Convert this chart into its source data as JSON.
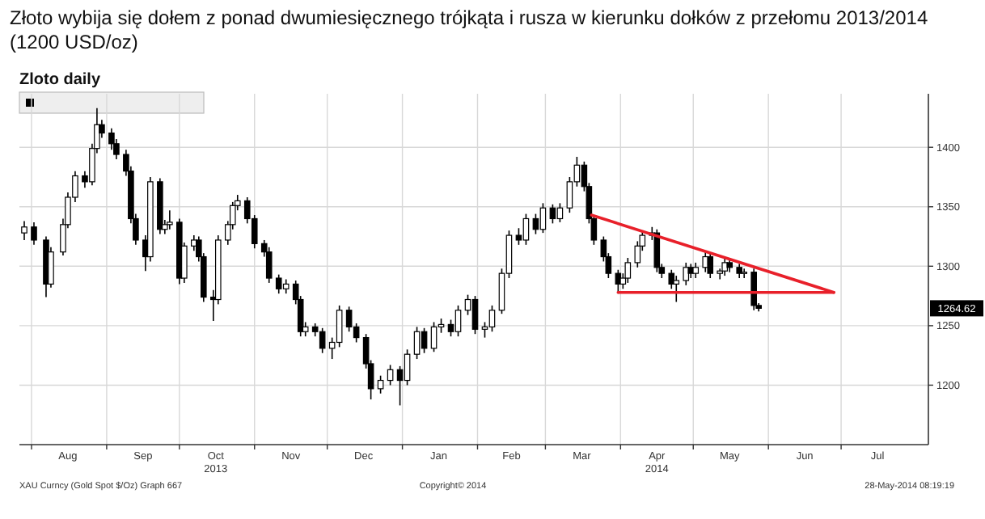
{
  "chart_data": {
    "type": "candlestick",
    "title": "Złoto wybija się dołem z ponad dwumiesięcznego trójkąta i rusza w kierunku dołków z przełomu 2013/2014 (1200 USD/oz)",
    "subtitle": "Zloto daily",
    "x": [
      "2013-07-29",
      "2013-08-02",
      "2013-08-07",
      "2013-08-09",
      "2013-08-14",
      "2013-08-16",
      "2013-08-19",
      "2013-08-23",
      "2013-08-26",
      "2013-08-28",
      "2013-08-30",
      "2013-09-03",
      "2013-09-05",
      "2013-09-09",
      "2013-09-11",
      "2013-09-13",
      "2013-09-17",
      "2013-09-19",
      "2013-09-23",
      "2013-09-25",
      "2013-09-27",
      "2013-10-01",
      "2013-10-03",
      "2013-10-07",
      "2013-10-09",
      "2013-10-11",
      "2013-10-15",
      "2013-10-17",
      "2013-10-21",
      "2013-10-23",
      "2013-10-25",
      "2013-10-29",
      "2013-11-01",
      "2013-11-05",
      "2013-11-07",
      "2013-11-11",
      "2013-11-14",
      "2013-11-18",
      "2013-11-20",
      "2013-11-22",
      "2013-11-26",
      "2013-11-29",
      "2013-12-03",
      "2013-12-06",
      "2013-12-10",
      "2013-12-13",
      "2013-12-17",
      "2013-12-19",
      "2013-12-23",
      "2013-12-27",
      "2013-12-31",
      "2014-01-03",
      "2014-01-07",
      "2014-01-10",
      "2014-01-14",
      "2014-01-17",
      "2014-01-21",
      "2014-01-24",
      "2014-01-28",
      "2014-01-31",
      "2014-02-04",
      "2014-02-07",
      "2014-02-11",
      "2014-02-14",
      "2014-02-18",
      "2014-02-21",
      "2014-02-25",
      "2014-02-28",
      "2014-03-04",
      "2014-03-07",
      "2014-03-11",
      "2014-03-14",
      "2014-03-17",
      "2014-03-19",
      "2014-03-21",
      "2014-03-25",
      "2014-03-27",
      "2014-03-31",
      "2014-04-02",
      "2014-04-04",
      "2014-04-08",
      "2014-04-10",
      "2014-04-14",
      "2014-04-16",
      "2014-04-18",
      "2014-04-22",
      "2014-04-24",
      "2014-04-28",
      "2014-04-30",
      "2014-05-02",
      "2014-05-06",
      "2014-05-08",
      "2014-05-12",
      "2014-05-14",
      "2014-05-16",
      "2014-05-20",
      "2014-05-22",
      "2014-05-26",
      "2014-05-28"
    ],
    "series": [
      {
        "color": "#000000",
        "ohlc": [
          [
            1328,
            1338,
            1322,
            1333
          ],
          [
            1333,
            1337,
            1318,
            1322
          ],
          [
            1322,
            1325,
            1274,
            1285
          ],
          [
            1285,
            1316,
            1282,
            1312
          ],
          [
            1312,
            1340,
            1309,
            1335
          ],
          [
            1335,
            1362,
            1332,
            1358
          ],
          [
            1358,
            1380,
            1354,
            1376
          ],
          [
            1376,
            1380,
            1366,
            1371
          ],
          [
            1371,
            1403,
            1368,
            1399
          ],
          [
            1399,
            1433,
            1395,
            1419
          ],
          [
            1419,
            1423,
            1408,
            1412
          ],
          [
            1412,
            1416,
            1398,
            1403
          ],
          [
            1403,
            1407,
            1390,
            1394
          ],
          [
            1394,
            1398,
            1376,
            1380
          ],
          [
            1380,
            1384,
            1336,
            1340
          ],
          [
            1340,
            1344,
            1318,
            1322
          ],
          [
            1322,
            1326,
            1296,
            1308
          ],
          [
            1308,
            1375,
            1304,
            1371
          ],
          [
            1371,
            1374,
            1327,
            1331
          ],
          [
            1331,
            1339,
            1327,
            1335
          ],
          [
            1335,
            1347,
            1331,
            1337
          ],
          [
            1337,
            1340,
            1285,
            1290
          ],
          [
            1290,
            1320,
            1286,
            1317
          ],
          [
            1317,
            1326,
            1313,
            1322
          ],
          [
            1322,
            1325,
            1304,
            1308
          ],
          [
            1308,
            1311,
            1270,
            1274
          ],
          [
            1274,
            1280,
            1254,
            1272
          ],
          [
            1272,
            1326,
            1268,
            1322
          ],
          [
            1322,
            1338,
            1318,
            1335
          ],
          [
            1335,
            1354,
            1331,
            1351
          ],
          [
            1351,
            1360,
            1347,
            1355
          ],
          [
            1355,
            1358,
            1336,
            1340
          ],
          [
            1340,
            1343,
            1315,
            1319
          ],
          [
            1319,
            1322,
            1308,
            1312
          ],
          [
            1312,
            1316,
            1286,
            1290
          ],
          [
            1290,
            1293,
            1277,
            1281
          ],
          [
            1281,
            1289,
            1277,
            1285
          ],
          [
            1285,
            1288,
            1268,
            1272
          ],
          [
            1272,
            1275,
            1241,
            1245
          ],
          [
            1245,
            1253,
            1241,
            1249
          ],
          [
            1249,
            1252,
            1241,
            1245
          ],
          [
            1245,
            1248,
            1227,
            1231
          ],
          [
            1231,
            1240,
            1222,
            1236
          ],
          [
            1236,
            1267,
            1232,
            1263
          ],
          [
            1263,
            1266,
            1245,
            1249
          ],
          [
            1249,
            1252,
            1236,
            1240
          ],
          [
            1240,
            1243,
            1214,
            1218
          ],
          [
            1218,
            1221,
            1188,
            1197
          ],
          [
            1197,
            1208,
            1193,
            1204
          ],
          [
            1204,
            1217,
            1200,
            1213
          ],
          [
            1213,
            1216,
            1183,
            1204
          ],
          [
            1204,
            1230,
            1200,
            1226
          ],
          [
            1226,
            1249,
            1222,
            1245
          ],
          [
            1245,
            1248,
            1227,
            1231
          ],
          [
            1231,
            1253,
            1228,
            1249
          ],
          [
            1249,
            1256,
            1244,
            1251
          ],
          [
            1251,
            1255,
            1241,
            1245
          ],
          [
            1245,
            1267,
            1241,
            1263
          ],
          [
            1263,
            1276,
            1259,
            1272
          ],
          [
            1272,
            1275,
            1243,
            1247
          ],
          [
            1247,
            1253,
            1240,
            1249
          ],
          [
            1249,
            1267,
            1245,
            1263
          ],
          [
            1263,
            1298,
            1260,
            1294
          ],
          [
            1294,
            1330,
            1290,
            1326
          ],
          [
            1326,
            1332,
            1318,
            1322
          ],
          [
            1322,
            1344,
            1318,
            1340
          ],
          [
            1340,
            1344,
            1327,
            1331
          ],
          [
            1331,
            1353,
            1328,
            1349
          ],
          [
            1349,
            1352,
            1336,
            1340
          ],
          [
            1340,
            1353,
            1337,
            1349
          ],
          [
            1349,
            1375,
            1345,
            1371
          ],
          [
            1371,
            1392,
            1367,
            1385
          ],
          [
            1385,
            1388,
            1363,
            1367
          ],
          [
            1367,
            1370,
            1336,
            1340
          ],
          [
            1340,
            1343,
            1318,
            1322
          ],
          [
            1322,
            1325,
            1304,
            1308
          ],
          [
            1308,
            1311,
            1290,
            1294
          ],
          [
            1294,
            1297,
            1277,
            1285
          ],
          [
            1285,
            1294,
            1281,
            1290
          ],
          [
            1290,
            1307,
            1286,
            1303
          ],
          [
            1303,
            1321,
            1299,
            1317
          ],
          [
            1317,
            1330,
            1313,
            1326
          ],
          [
            1326,
            1333,
            1322,
            1328
          ],
          [
            1328,
            1331,
            1295,
            1299
          ],
          [
            1299,
            1302,
            1290,
            1294
          ],
          [
            1294,
            1297,
            1281,
            1285
          ],
          [
            1285,
            1292,
            1270,
            1288
          ],
          [
            1288,
            1303,
            1284,
            1299
          ],
          [
            1299,
            1302,
            1290,
            1294
          ],
          [
            1294,
            1303,
            1290,
            1299
          ],
          [
            1299,
            1312,
            1295,
            1308
          ],
          [
            1308,
            1311,
            1290,
            1294
          ],
          [
            1294,
            1298,
            1289,
            1296
          ],
          [
            1296,
            1307,
            1292,
            1303
          ],
          [
            1303,
            1306,
            1295,
            1299
          ],
          [
            1299,
            1302,
            1290,
            1294
          ],
          [
            1294,
            1298,
            1290,
            1295
          ],
          [
            1295,
            1298,
            1263,
            1267
          ],
          [
            1267,
            1269,
            1262,
            1264.62
          ]
        ]
      },
      {
        "type": "line",
        "color": "#e8202a",
        "x": [
          "2014-03-20",
          "2014-06-28"
        ],
        "values": [
          1343,
          1278
        ]
      },
      {
        "type": "line",
        "color": "#e8202a",
        "x": [
          "2014-03-31",
          "2014-06-28"
        ],
        "values": [
          1278,
          1278
        ]
      }
    ],
    "xlim": [
      "2013-07-27",
      "2014-08-06"
    ],
    "xticks": [
      {
        "value": "2013-08-01",
        "label": null
      },
      {
        "value": "2013-08-16",
        "label": "Aug"
      },
      {
        "value": "2013-09-01",
        "label": null
      },
      {
        "value": "2013-09-16",
        "label": "Sep"
      },
      {
        "value": "2013-10-01",
        "label": null
      },
      {
        "value": "2013-10-16",
        "label": "Oct\n2013"
      },
      {
        "value": "2013-11-01",
        "label": null
      },
      {
        "value": "2013-11-16",
        "label": "Nov"
      },
      {
        "value": "2013-12-01",
        "label": null
      },
      {
        "value": "2013-12-16",
        "label": "Dec"
      },
      {
        "value": "2014-01-01",
        "label": null
      },
      {
        "value": "2014-01-16",
        "label": "Jan"
      },
      {
        "value": "2014-02-01",
        "label": null
      },
      {
        "value": "2014-02-15",
        "label": "Feb"
      },
      {
        "value": "2014-03-01",
        "label": null
      },
      {
        "value": "2014-03-16",
        "label": "Mar"
      },
      {
        "value": "2014-04-01",
        "label": null
      },
      {
        "value": "2014-04-16",
        "label": "Apr\n2014"
      },
      {
        "value": "2014-05-01",
        "label": null
      },
      {
        "value": "2014-05-16",
        "label": "May"
      },
      {
        "value": "2014-06-01",
        "label": null
      },
      {
        "value": "2014-06-16",
        "label": "Jun"
      },
      {
        "value": "2014-07-01",
        "label": null
      },
      {
        "value": "2014-07-16",
        "label": "Jul"
      }
    ],
    "ylim": [
      1150,
      1445
    ],
    "yticks": [
      1200,
      1250,
      1300,
      1350,
      1400
    ],
    "grid": true,
    "annotations": [
      {
        "text": "1264.62",
        "y": 1264.62
      },
      "XAU Curncy (Gold Spot $/Oz) Graph 667",
      "Copyright© 2014",
      "28-May-2014 08:19:19"
    ]
  }
}
